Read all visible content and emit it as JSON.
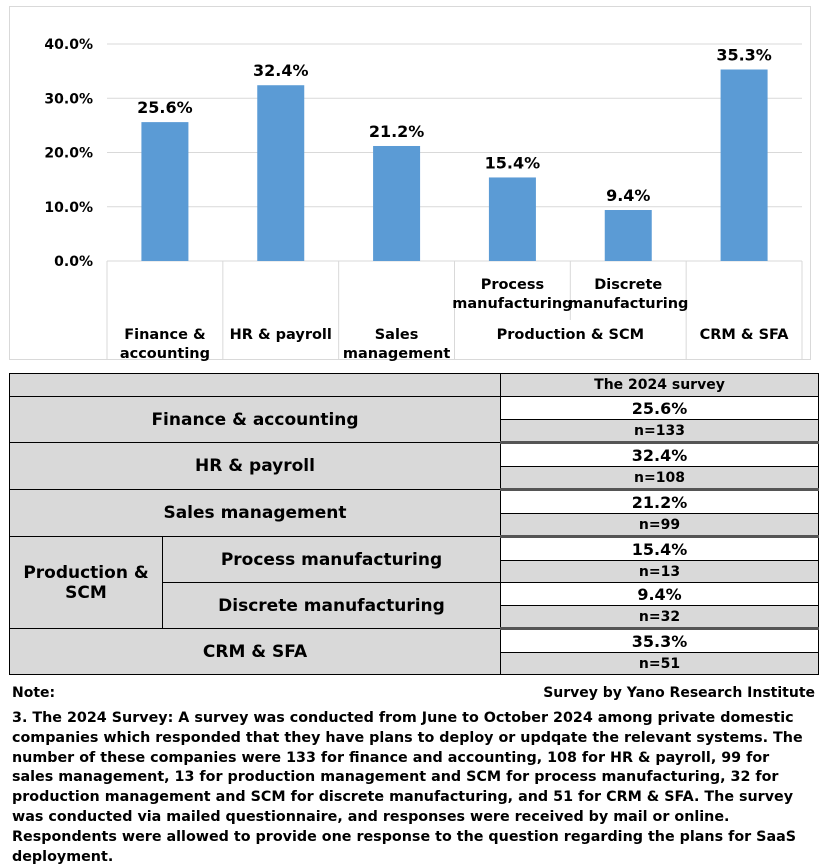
{
  "chart_data": {
    "type": "bar",
    "title": "",
    "xlabel": "",
    "ylabel": "",
    "ylim": [
      0,
      40
    ],
    "yticks": [
      0,
      10,
      20,
      30,
      40
    ],
    "ytick_labels": [
      "0.0%",
      "10.0%",
      "20.0%",
      "30.0%",
      "40.0%"
    ],
    "bar_color": "#5b9bd5",
    "categories": [
      {
        "lines": [
          "Finance &",
          "accounting"
        ]
      },
      {
        "lines": [
          "HR & payroll"
        ]
      },
      {
        "lines": [
          "Sales",
          "management"
        ]
      },
      {
        "lines": [
          "Process",
          "manufacturing"
        ]
      },
      {
        "lines": [
          "Discrete",
          "manufacturing"
        ]
      },
      {
        "lines": [
          "CRM & SFA"
        ]
      }
    ],
    "group_label": "Production & SCM",
    "values": [
      25.6,
      32.4,
      21.2,
      15.4,
      9.4,
      35.3
    ],
    "value_labels": [
      "25.6%",
      "32.4%",
      "21.2%",
      "15.4%",
      "9.4%",
      "35.3%"
    ]
  },
  "table": {
    "header": "The 2024 survey",
    "rows": {
      "finance": {
        "label": "Finance & accounting",
        "pct": "25.6%",
        "n": "n=133"
      },
      "hr": {
        "label": "HR & payroll",
        "pct": "32.4%",
        "n": "n=108"
      },
      "sales": {
        "label": "Sales management",
        "pct": "21.2%",
        "n": "n=99"
      },
      "production": {
        "label": "Production & SCM",
        "process": {
          "label": "Process manufacturing",
          "pct": "15.4%",
          "n": "n=13"
        },
        "discrete": {
          "label": "Discrete manufacturing",
          "pct": "9.4%",
          "n": "n=32"
        }
      },
      "crm": {
        "label": "CRM & SFA",
        "pct": "35.3%",
        "n": "n=51"
      }
    }
  },
  "note": {
    "label": "Note:",
    "source": "Survey by Yano Research Institute",
    "text": "3. The 2024 Survey: A survey was conducted from June to October 2024 among private domestic companies which responded that they have plans to deploy or updqate the relevant systems. The number of these companies were 133 for finance and accounting, 108 for HR & payroll, 99 for sales management, 13 for production management and SCM for process manufacturing, 32 for production management and SCM for discrete manufacturing, and 51 for CRM & SFA. The survey was conducted via mailed questionnaire, and responses were received by mail or online. Respondents were allowed to provide one response to the question regarding the plans for SaaS deployment."
  }
}
